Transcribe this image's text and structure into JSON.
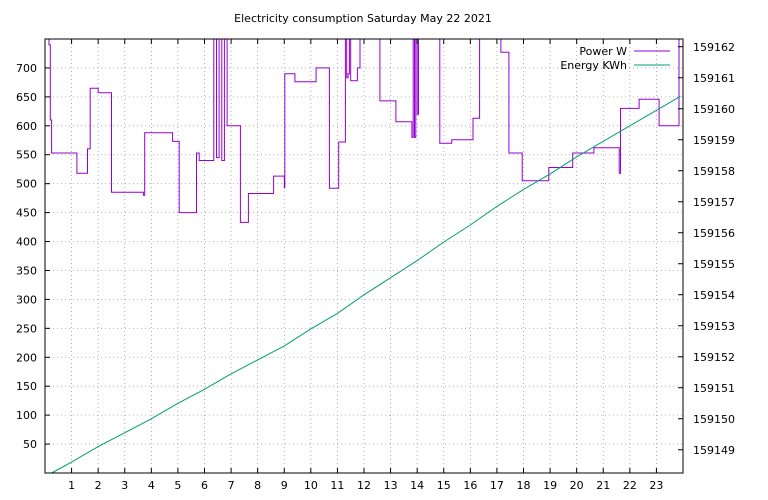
{
  "chart_data": {
    "type": "line",
    "title": "Electricity consumption Saturday May 22 2021",
    "x_range": [
      0,
      24
    ],
    "x_ticks": [
      1,
      2,
      3,
      4,
      5,
      6,
      7,
      8,
      9,
      10,
      11,
      12,
      13,
      14,
      15,
      16,
      17,
      18,
      19,
      20,
      21,
      22,
      23
    ],
    "y_left": {
      "range": [
        0,
        750
      ],
      "ticks": [
        50,
        100,
        150,
        200,
        250,
        300,
        350,
        400,
        450,
        500,
        550,
        600,
        650,
        700
      ]
    },
    "y_right": {
      "range": [
        159148.25,
        159162.25
      ],
      "ticks": [
        159149,
        159150,
        159151,
        159152,
        159153,
        159154,
        159155,
        159156,
        159157,
        159158,
        159159,
        159160,
        159161,
        159162
      ]
    },
    "grid": true,
    "legend_position": "top-right",
    "series": [
      {
        "name": "Power W",
        "axis": "left",
        "color": "#9400d3",
        "step": true,
        "points": [
          [
            0,
            760
          ],
          [
            0.15,
            740
          ],
          [
            0.2,
            610
          ],
          [
            0.25,
            553
          ],
          [
            1.2,
            518
          ],
          [
            1.6,
            560
          ],
          [
            1.7,
            665
          ],
          [
            2.0,
            657
          ],
          [
            2.5,
            485
          ],
          [
            3.7,
            480
          ],
          [
            3.75,
            588
          ],
          [
            4.8,
            573
          ],
          [
            5.05,
            450
          ],
          [
            5.7,
            553
          ],
          [
            5.8,
            540
          ],
          [
            6.35,
            760
          ],
          [
            6.45,
            545
          ],
          [
            6.55,
            760
          ],
          [
            6.65,
            540
          ],
          [
            6.75,
            760
          ],
          [
            6.85,
            600
          ],
          [
            7.35,
            433
          ],
          [
            7.65,
            483
          ],
          [
            8.6,
            513
          ],
          [
            9.0,
            493
          ],
          [
            9.02,
            690
          ],
          [
            9.4,
            676
          ],
          [
            10.2,
            700
          ],
          [
            10.7,
            492
          ],
          [
            11.05,
            572
          ],
          [
            11.3,
            760
          ],
          [
            11.35,
            683
          ],
          [
            11.4,
            690
          ],
          [
            11.45,
            760
          ],
          [
            11.5,
            678
          ],
          [
            11.75,
            700
          ],
          [
            11.85,
            760
          ],
          [
            12.6,
            643
          ],
          [
            13.2,
            607
          ],
          [
            13.8,
            580
          ],
          [
            13.85,
            760
          ],
          [
            13.9,
            580
          ],
          [
            13.95,
            760
          ],
          [
            14.0,
            620
          ],
          [
            14.05,
            760
          ],
          [
            14.85,
            570
          ],
          [
            15.3,
            576
          ],
          [
            16.1,
            613
          ],
          [
            16.35,
            760
          ],
          [
            17.0,
            760
          ],
          [
            17.15,
            727
          ],
          [
            17.45,
            553
          ],
          [
            17.95,
            505
          ],
          [
            18.95,
            528
          ],
          [
            19.85,
            553
          ],
          [
            20.65,
            562
          ],
          [
            21.6,
            518
          ],
          [
            21.65,
            630
          ],
          [
            22.35,
            646
          ],
          [
            23.1,
            600
          ],
          [
            23.8,
            600
          ],
          [
            23.85,
            760
          ],
          [
            24.0,
            580
          ]
        ]
      },
      {
        "name": "Energy KWh",
        "axis": "right",
        "color": "#009e73",
        "step": false,
        "points": [
          [
            0.25,
            159148.25
          ],
          [
            1,
            159148.6
          ],
          [
            2,
            159149.1
          ],
          [
            3,
            159149.55
          ],
          [
            4,
            159150.0
          ],
          [
            5,
            159150.5
          ],
          [
            6,
            159150.95
          ],
          [
            7,
            159151.45
          ],
          [
            8,
            159151.9
          ],
          [
            9,
            159152.35
          ],
          [
            10,
            159152.9
          ],
          [
            11,
            159153.4
          ],
          [
            12,
            159154.0
          ],
          [
            13,
            159154.55
          ],
          [
            14,
            159155.1
          ],
          [
            15,
            159155.7
          ],
          [
            16,
            159156.25
          ],
          [
            17,
            159156.85
          ],
          [
            18,
            159157.4
          ],
          [
            19,
            159157.9
          ],
          [
            20,
            159158.45
          ],
          [
            21,
            159158.95
          ],
          [
            22,
            159159.45
          ],
          [
            23,
            159159.95
          ],
          [
            23.9,
            159160.4
          ]
        ]
      }
    ]
  }
}
